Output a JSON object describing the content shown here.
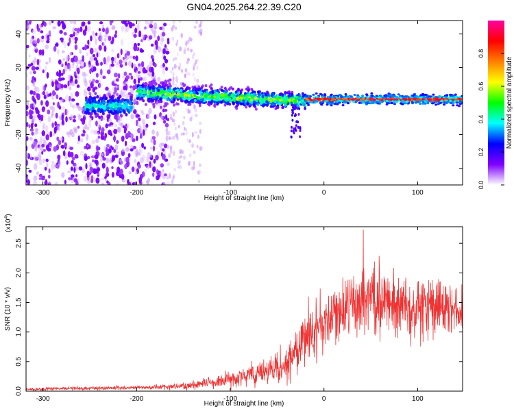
{
  "title": "GN04.2025.264.22.39.C20",
  "chart_data": [
    {
      "type": "heatmap",
      "xlabel": "Height of straight line (km)",
      "ylabel": "Frequency (Hz)",
      "xlim": [
        -318,
        148
      ],
      "ylim": [
        -50,
        48
      ],
      "xticks": [
        -300,
        -200,
        -100,
        0,
        100
      ],
      "yticks": [
        -40,
        -20,
        0,
        20,
        40
      ],
      "colorbar": {
        "label": "Normalized spectral amplitude",
        "range": [
          0,
          1
        ],
        "ticks": [
          "0.0",
          "0.2",
          "0.4",
          "0.6",
          "0.8"
        ],
        "colormap": [
          "#ffffff",
          "#8000ff",
          "#0000ff",
          "#00ffff",
          "#00ff00",
          "#ffff00",
          "#ff8000",
          "#ff0000",
          "#ff00a0"
        ]
      },
      "features": [
        {
          "name": "broadband noise",
          "x_range": [
            -318,
            -165
          ],
          "freq_range": [
            -50,
            48
          ],
          "amplitude": 0.1
        },
        {
          "name": "scattered noise",
          "x_range": [
            -165,
            -130
          ],
          "freq_range": [
            -50,
            48
          ],
          "amplitude": 0.05
        },
        {
          "name": "early band",
          "x_range": [
            -255,
            -205
          ],
          "freq_center": -3,
          "amplitude": 0.35
        },
        {
          "name": "signal band",
          "x_range": [
            -200,
            -20
          ],
          "freq_center": [
            5,
            0
          ],
          "amplitude": 0.6
        },
        {
          "name": "steady carrier",
          "x_range": [
            -20,
            148
          ],
          "freq_center": 1,
          "amplitude": 0.9
        },
        {
          "name": "dip",
          "x_range": [
            -35,
            -25
          ],
          "freq_min": -22,
          "amplitude": 0.2
        }
      ]
    },
    {
      "type": "line",
      "xlabel": "Height of straight line (km)",
      "ylabel": "SNR (10 * v/v)",
      "scale_label_base": "(x10",
      "scale_label_exp": "4",
      "scale_label_end": ")",
      "xlim": [
        -318,
        148
      ],
      "ylim": [
        0,
        2.78
      ],
      "xticks": [
        -300,
        -200,
        -100,
        0,
        100
      ],
      "yticks": [
        "0.0",
        "0.5",
        "1.0",
        "1.5",
        "2.0",
        "2.5"
      ],
      "color": "#ee3333",
      "envelope": [
        {
          "x": -318,
          "mean": 0.03,
          "spread": 0.02
        },
        {
          "x": -250,
          "mean": 0.05,
          "spread": 0.03
        },
        {
          "x": -200,
          "mean": 0.06,
          "spread": 0.03
        },
        {
          "x": -150,
          "mean": 0.08,
          "spread": 0.05
        },
        {
          "x": -120,
          "mean": 0.15,
          "spread": 0.08
        },
        {
          "x": -100,
          "mean": 0.2,
          "spread": 0.12
        },
        {
          "x": -80,
          "mean": 0.28,
          "spread": 0.15
        },
        {
          "x": -60,
          "mean": 0.35,
          "spread": 0.2
        },
        {
          "x": -40,
          "mean": 0.45,
          "spread": 0.25
        },
        {
          "x": -25,
          "mean": 0.8,
          "spread": 0.4
        },
        {
          "x": -10,
          "mean": 1.05,
          "spread": 0.45
        },
        {
          "x": 0,
          "mean": 1.1,
          "spread": 0.45
        },
        {
          "x": 20,
          "mean": 1.35,
          "spread": 0.45
        },
        {
          "x": 45,
          "mean": 1.6,
          "spread": 0.55
        },
        {
          "x": 70,
          "mean": 1.5,
          "spread": 0.5
        },
        {
          "x": 100,
          "mean": 1.45,
          "spread": 0.45
        },
        {
          "x": 130,
          "mean": 1.4,
          "spread": 0.4
        },
        {
          "x": 148,
          "mean": 1.35,
          "spread": 0.35
        }
      ],
      "peak": {
        "x": 42,
        "y": 2.73
      }
    }
  ]
}
